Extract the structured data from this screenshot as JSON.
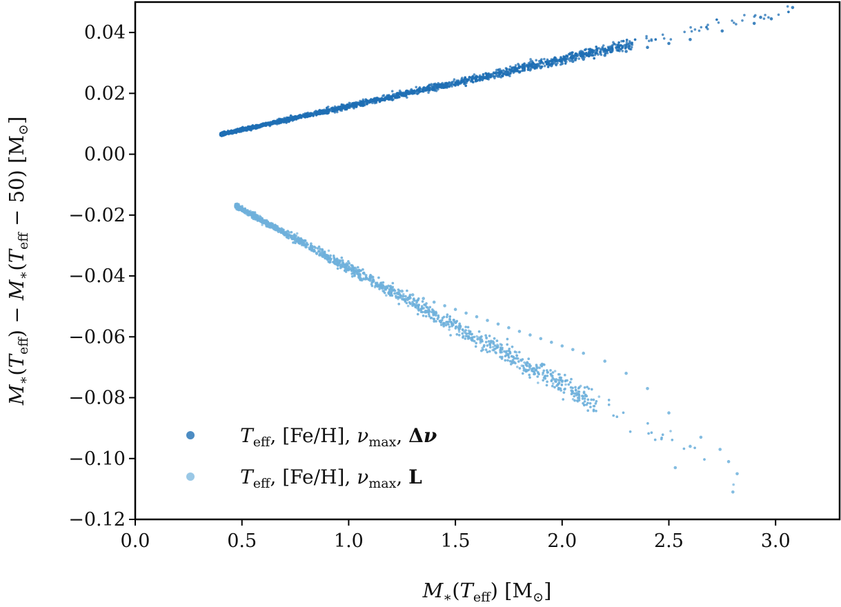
{
  "chart_data": {
    "type": "scatter",
    "title": "",
    "xlabel": "M*(Teff) [M⊙]",
    "ylabel": "M*(Teff) − M*(Teff − 50) [M⊙]",
    "xlim": [
      0.0,
      3.3
    ],
    "ylim": [
      -0.12,
      0.05
    ],
    "xticks": [
      0.0,
      0.5,
      1.0,
      1.5,
      2.0,
      2.5,
      3.0
    ],
    "xtick_labels": [
      "0.0",
      "0.5",
      "1.0",
      "1.5",
      "2.0",
      "2.5",
      "3.0"
    ],
    "yticks": [
      0.04,
      0.02,
      0.0,
      -0.02,
      -0.04,
      -0.06,
      -0.08,
      -0.1,
      -0.12
    ],
    "ytick_labels": [
      "0.04",
      "0.02",
      "0.00",
      "−0.02",
      "−0.04",
      "−0.06",
      "−0.08",
      "−0.10",
      "−0.12"
    ],
    "grid": false,
    "legend_position": "bottom-left",
    "series": [
      {
        "name": "Teff, [Fe/H], νmax, Δν",
        "color": "#1f6fb4",
        "trend": {
          "x_start": 0.4,
          "y_start": 0.0065,
          "x_end": 3.08,
          "y_end": 0.048
        },
        "x": [
          0.4,
          0.45,
          0.5,
          0.55,
          0.6,
          0.65,
          0.7,
          0.75,
          0.8,
          0.85,
          0.9,
          0.95,
          1.0,
          1.05,
          1.1,
          1.15,
          1.2,
          1.25,
          1.3,
          1.35,
          1.4,
          1.45,
          1.5,
          1.55,
          1.6,
          1.65,
          1.7,
          1.75,
          1.8,
          1.85,
          1.9,
          1.95,
          2.0,
          2.05,
          2.1,
          2.2,
          2.3,
          2.4,
          2.5,
          2.6,
          2.75,
          2.9,
          2.93,
          2.98,
          3.08
        ],
        "y": [
          0.0065,
          0.0075,
          0.0085,
          0.0093,
          0.01,
          0.0108,
          0.0115,
          0.0123,
          0.013,
          0.0137,
          0.0144,
          0.0151,
          0.0158,
          0.0165,
          0.0172,
          0.0179,
          0.0186,
          0.0193,
          0.02,
          0.0207,
          0.0214,
          0.0221,
          0.0228,
          0.0235,
          0.0242,
          0.0249,
          0.0256,
          0.0263,
          0.027,
          0.0277,
          0.0284,
          0.0291,
          0.0298,
          0.0305,
          0.0312,
          0.0325,
          0.0338,
          0.0351,
          0.0364,
          0.0377,
          0.0405,
          0.043,
          0.045,
          0.0445,
          0.0482
        ]
      },
      {
        "name": "Teff, [Fe/H], νmax, L",
        "color": "#6fb1dc",
        "trend": {
          "x_start": 0.47,
          "y_start": -0.017,
          "x_end": 2.82,
          "y_end": -0.107
        },
        "x": [
          0.47,
          0.5,
          0.55,
          0.6,
          0.65,
          0.7,
          0.75,
          0.8,
          0.85,
          0.9,
          0.95,
          1.0,
          1.05,
          1.1,
          1.15,
          1.2,
          1.25,
          1.3,
          1.35,
          1.4,
          1.45,
          1.5,
          1.55,
          1.6,
          1.65,
          1.7,
          1.75,
          1.8,
          1.85,
          1.9,
          1.95,
          2.0,
          2.05,
          2.1,
          2.2,
          2.3,
          2.4,
          2.5,
          2.53,
          2.6,
          2.65,
          2.74,
          2.78,
          2.8,
          2.82
        ],
        "y": [
          -0.017,
          -0.0185,
          -0.0205,
          -0.0225,
          -0.0245,
          -0.0265,
          -0.0285,
          -0.0305,
          -0.0325,
          -0.0345,
          -0.0365,
          -0.038,
          -0.0395,
          -0.041,
          -0.0425,
          -0.044,
          -0.045,
          -0.0462,
          -0.0474,
          -0.0486,
          -0.0498,
          -0.051,
          -0.0522,
          -0.0534,
          -0.0546,
          -0.0558,
          -0.057,
          -0.0582,
          -0.0594,
          -0.0606,
          -0.0618,
          -0.063,
          -0.0642,
          -0.0654,
          -0.068,
          -0.072,
          -0.077,
          -0.085,
          -0.103,
          -0.096,
          -0.093,
          -0.097,
          -0.101,
          -0.111,
          -0.105
        ]
      }
    ]
  }
}
